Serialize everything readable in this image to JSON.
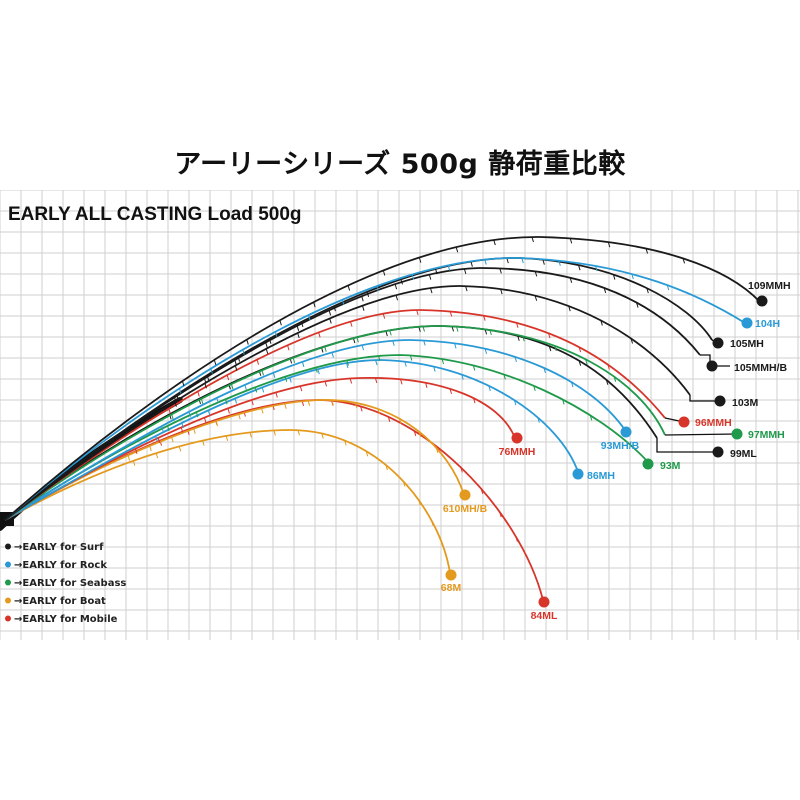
{
  "page_title": "アーリーシリーズ 500g 静荷重比較",
  "chart_data": {
    "type": "line",
    "title": "EARLY ALL CASTING  Load 500g",
    "grid": true,
    "colors": {
      "surf": "#1a1a1a",
      "rock": "#2a9ad6",
      "seabass": "#1f9a4a",
      "boat": "#e39a1e",
      "mobile": "#d8352a"
    },
    "legend": [
      {
        "group": "surf",
        "label": "→EARLY for Surf"
      },
      {
        "group": "rock",
        "label": "→EARLY for Rock"
      },
      {
        "group": "seabass",
        "label": "→EARLY for Seabass"
      },
      {
        "group": "boat",
        "label": "→EARLY for Boat"
      },
      {
        "group": "mobile",
        "label": "→EARLY for Mobile"
      }
    ],
    "series": [
      {
        "name": "109MMH",
        "group": "surf"
      },
      {
        "name": "104H",
        "group": "rock"
      },
      {
        "name": "105MH",
        "group": "surf"
      },
      {
        "name": "105MMH/B",
        "group": "surf"
      },
      {
        "name": "103M",
        "group": "surf"
      },
      {
        "name": "96MMH",
        "group": "mobile"
      },
      {
        "name": "97MMH",
        "group": "seabass"
      },
      {
        "name": "99ML",
        "group": "surf"
      },
      {
        "name": "93MH/B",
        "group": "rock"
      },
      {
        "name": "93M",
        "group": "seabass"
      },
      {
        "name": "86MH",
        "group": "rock"
      },
      {
        "name": "76MMH",
        "group": "mobile"
      },
      {
        "name": "610MH/B",
        "group": "boat"
      },
      {
        "name": "68M",
        "group": "boat"
      },
      {
        "name": "84ML",
        "group": "mobile"
      }
    ]
  }
}
